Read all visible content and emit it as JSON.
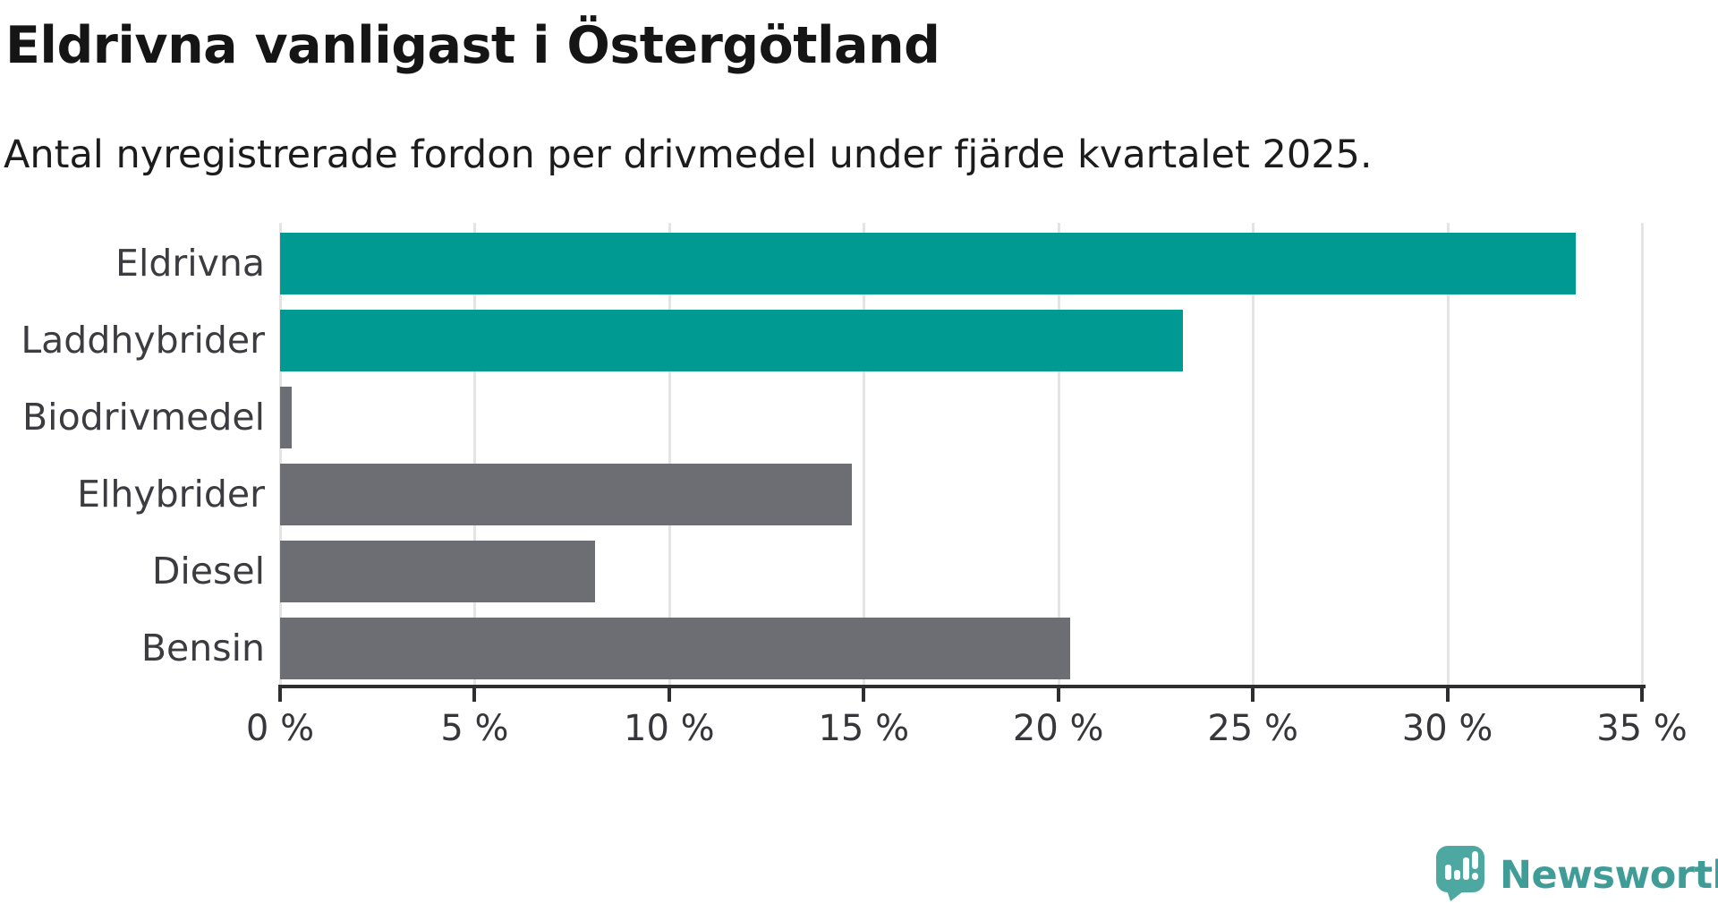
{
  "header": {
    "title": "Eldrivna vanligast i Östergötland",
    "subtitle": "Antal nyregistrerade fordon per drivmedel under fjärde kvartalet 2025."
  },
  "chart_data": {
    "type": "bar",
    "orientation": "horizontal",
    "title": "Eldrivna vanligast i Östergötland",
    "subtitle": "Antal nyregistrerade fordon per drivmedel under fjärde kvartalet 2025.",
    "categories": [
      "Eldrivna",
      "Laddhybrider",
      "Biodrivmedel",
      "Elhybrider",
      "Diesel",
      "Bensin"
    ],
    "values": [
      33.3,
      23.2,
      0.3,
      14.7,
      8.1,
      20.3
    ],
    "unit": "%",
    "bar_colors": [
      "#009a93",
      "#009a93",
      "#6d6e73",
      "#6d6e73",
      "#6d6e73",
      "#6d6e73"
    ],
    "xlabel": "",
    "ylabel": "",
    "xlim": [
      0,
      35
    ],
    "x_ticks": [
      0,
      5,
      10,
      15,
      20,
      25,
      30,
      35
    ],
    "x_tick_labels": [
      "0 %",
      "5 %",
      "10 %",
      "15 %",
      "20 %",
      "25 %",
      "30 %",
      "35 %"
    ],
    "grid": "vertical-only",
    "legend": "none"
  },
  "colors": {
    "accent_teal": "#009a93",
    "neutral_gray": "#6d6e73",
    "gridline": "#e4e4e4",
    "axis": "#2e2e31",
    "title_text": "#151515",
    "label_text": "#3b3b40",
    "logo_teal": "#3f9c96",
    "logo_icon_teal": "#4ca8a1"
  },
  "branding": {
    "logo_text": "Newsworthy"
  }
}
